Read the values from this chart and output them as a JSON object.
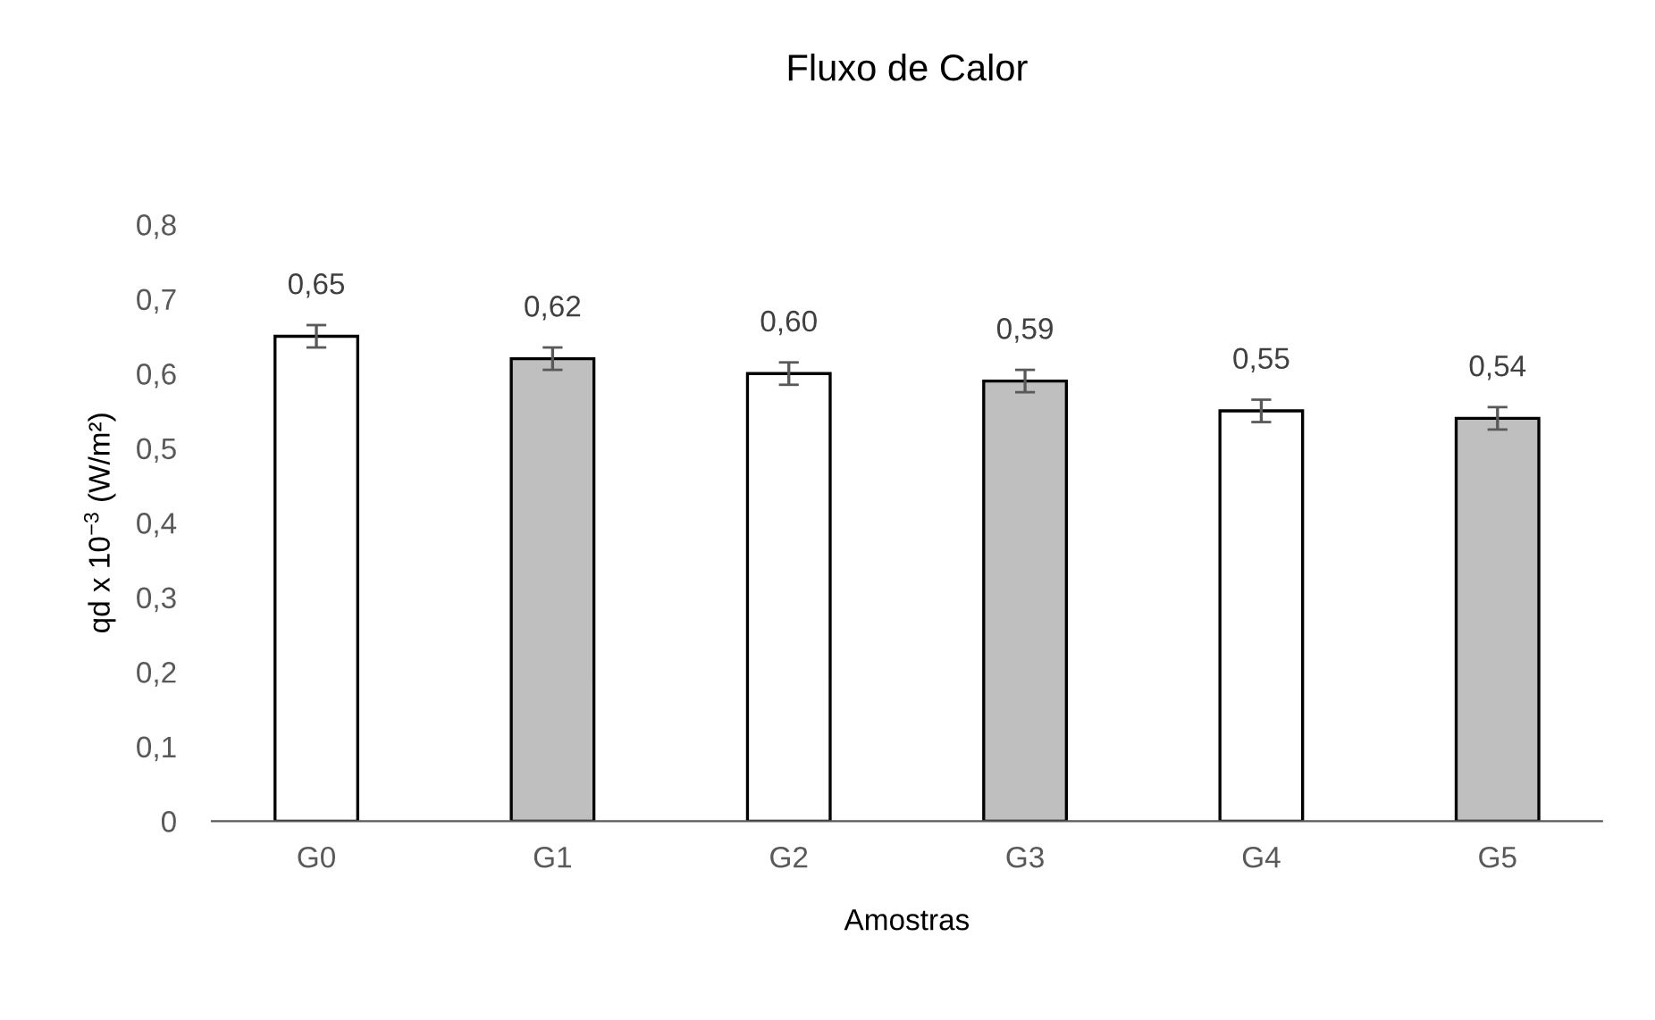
{
  "chart_data": {
    "type": "bar",
    "title": "Fluxo de Calor",
    "xlabel": "Amostras",
    "ylabel": "qd x 10$^{−3}$ (W/m²)",
    "categories": [
      "G0",
      "G1",
      "G2",
      "G3",
      "G4",
      "G5"
    ],
    "values": [
      0.65,
      0.62,
      0.6,
      0.59,
      0.55,
      0.54
    ],
    "colors": [
      "#ffffff",
      "#bfbfbf",
      "#ffffff",
      "#bfbfbf",
      "#ffffff",
      "#bfbfbf"
    ],
    "errors": [
      0.015,
      0.015,
      0.015,
      0.015,
      0.015,
      0.015
    ],
    "value_labels": [
      "0,65",
      "0,62",
      "0,60",
      "0,59",
      "0,55",
      "0,54"
    ],
    "ylim": [
      0,
      0.8
    ],
    "yticks": [
      0,
      {
        "value": 0.1,
        "label": "0,1"
      },
      {
        "value": 0.2,
        "label": "0,2"
      },
      {
        "value": 0.3,
        "label": "0,3"
      },
      {
        "value": 0.4,
        "label": "0,4"
      },
      {
        "value": 0.5,
        "label": "0,5"
      },
      {
        "value": 0.6,
        "label": "0,6"
      },
      {
        "value": 0.7,
        "label": "0,7"
      },
      {
        "value": 0.8,
        "label": "0,8"
      }
    ],
    "grid": false,
    "legend": false
  }
}
